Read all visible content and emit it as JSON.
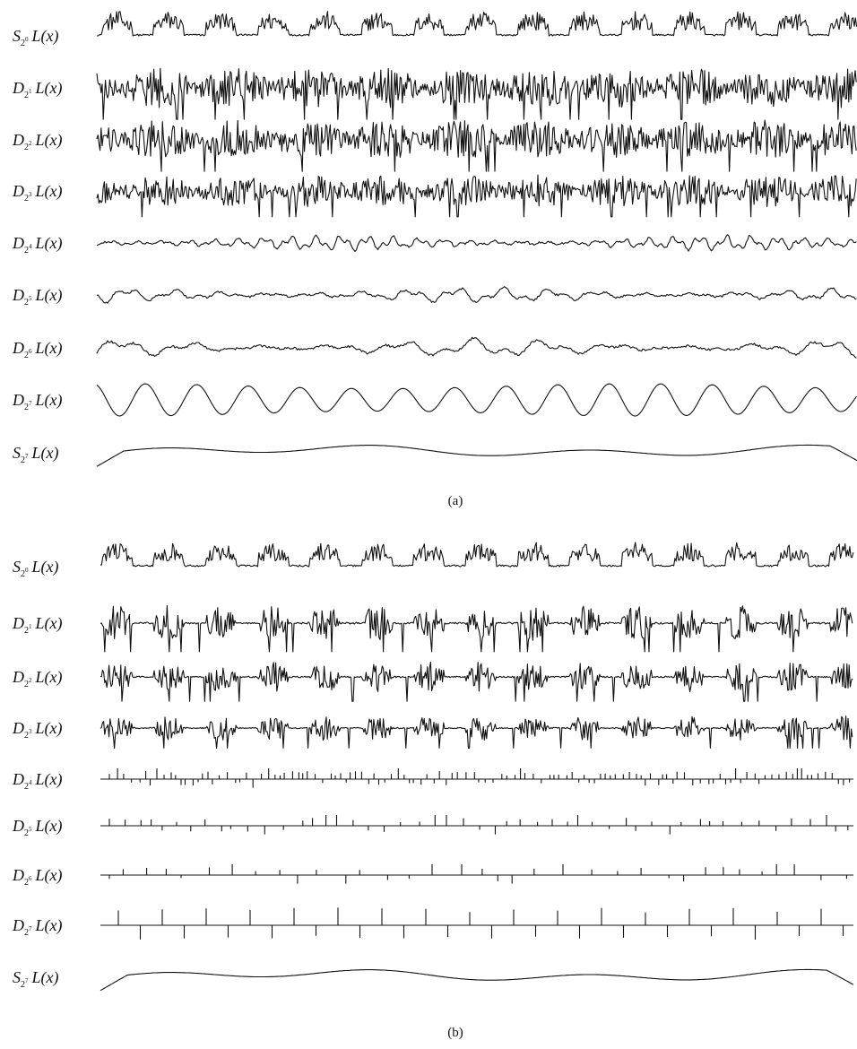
{
  "panels": [
    {
      "caption": "(a)",
      "rows": [
        {
          "symbol": "S",
          "base": "2",
          "exponent": "0",
          "function": "L(x)"
        },
        {
          "symbol": "D",
          "base": "2",
          "exponent": "1",
          "function": "L(x)"
        },
        {
          "symbol": "D",
          "base": "2",
          "exponent": "2",
          "function": "L(x)"
        },
        {
          "symbol": "D",
          "base": "2",
          "exponent": "3",
          "function": "L(x)"
        },
        {
          "symbol": "D",
          "base": "2",
          "exponent": "4",
          "function": "L(x)"
        },
        {
          "symbol": "D",
          "base": "2",
          "exponent": "5",
          "function": "L(x)"
        },
        {
          "symbol": "D",
          "base": "2",
          "exponent": "6",
          "function": "L(x)"
        },
        {
          "symbol": "D",
          "base": "2",
          "exponent": "7",
          "function": "L(x)"
        },
        {
          "symbol": "S",
          "base": "2",
          "exponent": "7",
          "function": "L(x)"
        }
      ]
    },
    {
      "caption": "(b)",
      "rows": [
        {
          "symbol": "S",
          "base": "2",
          "exponent": "0",
          "function": "L(x)"
        },
        {
          "symbol": "D",
          "base": "2",
          "exponent": "1",
          "function": "L(x)"
        },
        {
          "symbol": "D",
          "base": "2",
          "exponent": "2",
          "function": "L(x)"
        },
        {
          "symbol": "D",
          "base": "2",
          "exponent": "3",
          "function": "L(x)"
        },
        {
          "symbol": "D",
          "base": "2",
          "exponent": "4",
          "function": "L(x)"
        },
        {
          "symbol": "D",
          "base": "2",
          "exponent": "5",
          "function": "L(x)"
        },
        {
          "symbol": "D",
          "base": "2",
          "exponent": "6",
          "function": "L(x)"
        },
        {
          "symbol": "D",
          "base": "2",
          "exponent": "7",
          "function": "L(x)"
        },
        {
          "symbol": "S",
          "base": "2",
          "exponent": "7",
          "function": "L(x)"
        }
      ]
    }
  ]
}
